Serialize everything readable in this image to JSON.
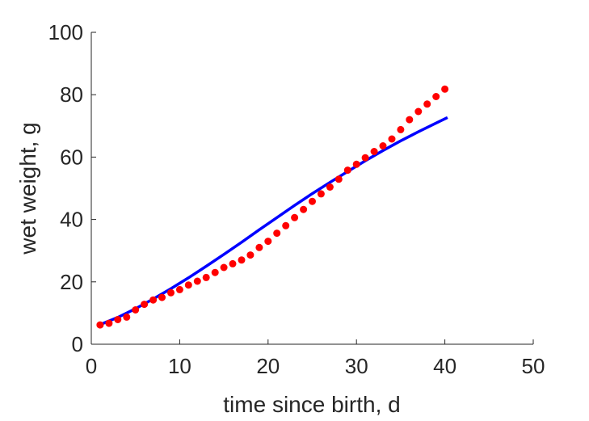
{
  "chart_data": {
    "type": "scatter",
    "title": "",
    "xlabel": "time since birth, d",
    "ylabel": "wet weight, g",
    "xlim": [
      0,
      50
    ],
    "ylim": [
      0,
      100
    ],
    "xticks": [
      0,
      10,
      20,
      30,
      40,
      50
    ],
    "yticks": [
      0,
      20,
      40,
      60,
      80,
      100
    ],
    "xtick_labels": [
      "0",
      "10",
      "20",
      "30",
      "40",
      "50"
    ],
    "ytick_labels": [
      "0",
      "20",
      "40",
      "60",
      "80",
      "100"
    ],
    "grid": false,
    "legend": "none",
    "series": [
      {
        "kind": "scatter",
        "color": "#ff0000",
        "x": [
          1,
          2,
          3,
          4,
          5,
          6,
          7,
          8,
          9,
          10,
          11,
          12,
          13,
          14,
          15,
          16,
          17,
          18,
          19,
          20,
          21,
          22,
          23,
          24,
          25,
          26,
          27,
          28,
          29,
          30,
          31,
          32,
          33,
          34,
          35,
          36,
          37,
          38,
          39,
          40
        ],
        "y": [
          6.2,
          6.7,
          7.9,
          8.7,
          11.0,
          12.8,
          14.2,
          15.0,
          16.5,
          17.5,
          19.0,
          20.2,
          21.4,
          23.0,
          24.6,
          25.8,
          27.0,
          28.6,
          31.0,
          33.0,
          35.6,
          38.0,
          40.6,
          43.2,
          45.8,
          48.2,
          50.4,
          52.9,
          55.8,
          57.7,
          59.8,
          61.8,
          63.6,
          65.8,
          68.8,
          72.0,
          74.6,
          77.0,
          79.4,
          81.8
        ]
      },
      {
        "kind": "line",
        "color": "#0000ff",
        "x": [
          1,
          3,
          5,
          7,
          9,
          11,
          13,
          15,
          17,
          19,
          21,
          23,
          25,
          27,
          29,
          31,
          33,
          35,
          37,
          39,
          40.3
        ],
        "y": [
          6.3,
          8.6,
          11.4,
          14.5,
          17.8,
          21.3,
          25.0,
          28.8,
          32.7,
          36.7,
          40.6,
          44.5,
          48.3,
          51.9,
          55.4,
          58.8,
          62.1,
          65.2,
          68.1,
          70.9,
          72.7
        ]
      }
    ]
  }
}
